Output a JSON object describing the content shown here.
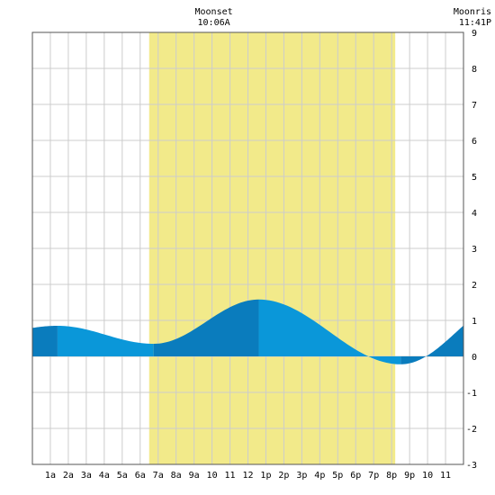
{
  "chart_data": {
    "type": "area",
    "x_unit": "hours after midnight",
    "ylim": [
      -3,
      9
    ],
    "xlim": [
      0,
      24
    ],
    "grid": true,
    "x_ticks": [
      {
        "x": 1,
        "label": "1a"
      },
      {
        "x": 2,
        "label": "2a"
      },
      {
        "x": 3,
        "label": "3a"
      },
      {
        "x": 4,
        "label": "4a"
      },
      {
        "x": 5,
        "label": "5a"
      },
      {
        "x": 6,
        "label": "6a"
      },
      {
        "x": 7,
        "label": "7a"
      },
      {
        "x": 8,
        "label": "8a"
      },
      {
        "x": 9,
        "label": "9a"
      },
      {
        "x": 10,
        "label": "10"
      },
      {
        "x": 11,
        "label": "11"
      },
      {
        "x": 12,
        "label": "12"
      },
      {
        "x": 13,
        "label": "1p"
      },
      {
        "x": 14,
        "label": "2p"
      },
      {
        "x": 15,
        "label": "3p"
      },
      {
        "x": 16,
        "label": "4p"
      },
      {
        "x": 17,
        "label": "5p"
      },
      {
        "x": 18,
        "label": "6p"
      },
      {
        "x": 19,
        "label": "7p"
      },
      {
        "x": 20,
        "label": "8p"
      },
      {
        "x": 21,
        "label": "9p"
      },
      {
        "x": 22,
        "label": "10"
      },
      {
        "x": 23,
        "label": "11"
      }
    ],
    "y_ticks": [
      -3,
      -2,
      -1,
      0,
      1,
      2,
      3,
      4,
      5,
      6,
      7,
      8,
      9
    ],
    "daylight": {
      "start": 6.5,
      "end": 20.2
    },
    "tides": [
      {
        "type": "high",
        "time": 1.4,
        "value": 0.85
      },
      {
        "type": "low",
        "time": 6.75,
        "value": 0.35
      },
      {
        "type": "high",
        "time": 12.6,
        "value": 1.58
      },
      {
        "type": "low",
        "time": 20.5,
        "value": -0.22
      }
    ],
    "annotations": [
      {
        "label": "Moonset",
        "time_label": "10:06A",
        "x": 10.1
      },
      {
        "label": "Moonris",
        "time_label": "11:41P",
        "x": 23.68
      }
    ],
    "colors": {
      "daylight": "#f2ea8a",
      "tide_light": "#0a97d9",
      "tide_dark": "#0a7cbd",
      "grid": "#cccccc",
      "frame": "#555555"
    }
  }
}
